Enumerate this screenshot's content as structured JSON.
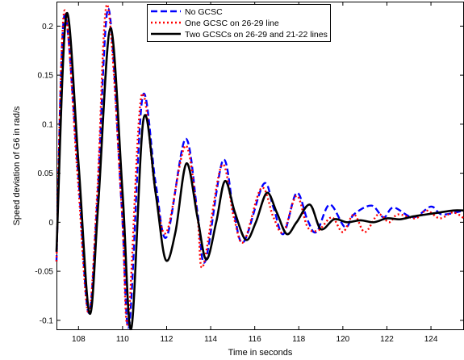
{
  "chart_data": {
    "type": "line",
    "title": "",
    "xlabel": "Time in seconds",
    "ylabel": "Speed deviation of G6 in rad/s",
    "xlim": [
      107,
      125.5
    ],
    "ylim": [
      -0.11,
      0.225
    ],
    "xticks": [
      108,
      110,
      112,
      114,
      116,
      118,
      120,
      122,
      124
    ],
    "yticks": [
      -0.1,
      -0.05,
      0,
      0.05,
      0.1,
      0.15,
      0.2
    ],
    "xtick_labels": [
      "108",
      "110",
      "112",
      "114",
      "116",
      "118",
      "120",
      "122",
      "124"
    ],
    "ytick_labels": [
      "-0.1",
      "-0.05",
      "0",
      "0.05",
      "0.1",
      "0.15",
      "0.2"
    ],
    "grid": false,
    "legend_position": "top-center",
    "series": [
      {
        "name": "No GCSC",
        "color": "#0000ff",
        "style": "dashed",
        "x": [
          107.0,
          107.35,
          107.95,
          108.45,
          108.85,
          109.35,
          109.95,
          110.3,
          110.9,
          111.5,
          112.0,
          112.85,
          113.4,
          113.75,
          114.55,
          115.05,
          115.5,
          116.4,
          116.85,
          117.3,
          117.9,
          118.4,
          118.8,
          119.4,
          120.1,
          120.5,
          121.3,
          121.85,
          122.3,
          123.2,
          124.0,
          124.5,
          125.5
        ],
        "y": [
          -0.04,
          0.21,
          0.06,
          -0.092,
          0.02,
          0.218,
          0.02,
          -0.105,
          0.127,
          0.04,
          -0.015,
          0.085,
          0.01,
          -0.04,
          0.063,
          0.01,
          -0.02,
          0.039,
          0.015,
          -0.012,
          0.03,
          0.002,
          -0.01,
          0.018,
          -0.005,
          0.008,
          0.017,
          0.005,
          0.015,
          0.005,
          0.016,
          0.008,
          0.012
        ]
      },
      {
        "name": "One GCSC on 26-29 line",
        "color": "#ff0000",
        "style": "dotted",
        "x": [
          107.0,
          107.35,
          107.95,
          108.45,
          108.85,
          109.3,
          109.95,
          110.25,
          110.85,
          111.5,
          112.0,
          112.85,
          113.4,
          113.65,
          114.5,
          115.05,
          115.5,
          116.3,
          116.85,
          117.3,
          117.9,
          118.4,
          118.9,
          119.5,
          120.0,
          120.5,
          121.0,
          121.6,
          122.1,
          122.5,
          123.3,
          123.8,
          124.4,
          125.0,
          125.5
        ],
        "y": [
          -0.04,
          0.215,
          0.05,
          -0.093,
          0.03,
          0.222,
          0.02,
          -0.102,
          0.128,
          0.03,
          -0.01,
          0.078,
          0.005,
          -0.045,
          0.058,
          0.005,
          -0.02,
          0.035,
          0.005,
          -0.01,
          0.027,
          -0.005,
          -0.008,
          0.005,
          -0.01,
          0.008,
          -0.01,
          0.008,
          0.0,
          0.008,
          0.004,
          0.012,
          0.004,
          0.01,
          0.004
        ]
      },
      {
        "name": "Two GCSCs on 26-29 and 21-22 lines",
        "color": "#000000",
        "style": "solid",
        "x": [
          107.0,
          107.45,
          108.0,
          108.5,
          108.9,
          109.45,
          110.0,
          110.4,
          110.95,
          111.5,
          111.95,
          112.4,
          112.9,
          113.4,
          113.8,
          114.25,
          114.65,
          115.1,
          115.6,
          116.05,
          116.55,
          117.0,
          117.45,
          117.9,
          118.5,
          119.0,
          119.6,
          120.2,
          120.8,
          121.4,
          122.0,
          122.6,
          123.2,
          123.8,
          124.4,
          125.0,
          125.5
        ],
        "y": [
          -0.03,
          0.212,
          0.06,
          -0.093,
          0.02,
          0.198,
          0.03,
          -0.108,
          0.105,
          0.03,
          -0.038,
          -0.01,
          0.06,
          0.005,
          -0.038,
          0.0,
          0.042,
          0.01,
          -0.018,
          0.0,
          0.03,
          0.01,
          -0.012,
          0.0,
          0.018,
          -0.007,
          0.003,
          0.0,
          0.002,
          0.0,
          0.004,
          0.003,
          0.006,
          0.008,
          0.01,
          0.012,
          0.012
        ]
      }
    ]
  }
}
